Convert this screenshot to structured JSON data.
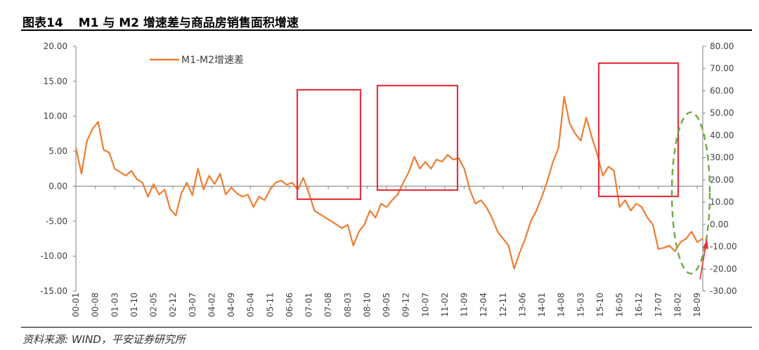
{
  "header": {
    "figure_no": "图表14",
    "title": "M1 与 M2 增速差与商品房销售面积增速"
  },
  "source": "资料来源: WIND，平安证券研究所",
  "colors": {
    "m1_m2": "#ED7D31",
    "sales": "#A6A6A6",
    "highlight_box": "#E8323C",
    "forecast_ellipse": "#70AD47",
    "arrow": "#E8323C",
    "axis": "#7F7F7F"
  },
  "chart_data": {
    "type": "line",
    "x_tick_labels": [
      "00-01",
      "00-08",
      "01-03",
      "01-10",
      "02-05",
      "02-12",
      "03-07",
      "04-02",
      "04-09",
      "05-04",
      "05-11",
      "06-06",
      "07-01",
      "07-08",
      "08-03",
      "08-10",
      "09-05",
      "09-12",
      "10-07",
      "11-02",
      "11-09",
      "12-04",
      "12-11",
      "13-06",
      "14-01",
      "14-08",
      "15-03",
      "15-10",
      "16-05",
      "16-12",
      "17-07",
      "18-02",
      "18-09"
    ],
    "x_range": [
      "2000-01",
      "2018-11"
    ],
    "y_left": {
      "ticks": [
        "20.00",
        "15.00",
        "10.00",
        "5.00",
        "0.00",
        "-5.00",
        "-10.00",
        "-15.00"
      ],
      "range": [
        -15,
        20
      ]
    },
    "y_right": {
      "ticks": [
        "80.00",
        "70.00",
        "60.00",
        "50.00",
        "40.00",
        "30.00",
        "20.00",
        "10.00",
        "0.00",
        "-10.00",
        "-20.00",
        "-30.00"
      ],
      "range": [
        -30,
        80
      ]
    },
    "legend_position": "top",
    "grid": false,
    "series": [
      {
        "name": "M1-M2增速差",
        "axis": "left",
        "points": [
          [
            "2000-01",
            5.5
          ],
          [
            "2000-03",
            1.8
          ],
          [
            "2000-05",
            6.5
          ],
          [
            "2000-07",
            8.2
          ],
          [
            "2000-09",
            9.2
          ],
          [
            "2000-11",
            5.2
          ],
          [
            "2001-01",
            4.8
          ],
          [
            "2001-03",
            2.5
          ],
          [
            "2001-05",
            2.0
          ],
          [
            "2001-07",
            1.5
          ],
          [
            "2001-09",
            2.2
          ],
          [
            "2001-11",
            1.0
          ],
          [
            "2002-01",
            0.5
          ],
          [
            "2002-03",
            -1.5
          ],
          [
            "2002-05",
            0.3
          ],
          [
            "2002-07",
            -1.2
          ],
          [
            "2002-09",
            -0.5
          ],
          [
            "2002-11",
            -3.3
          ],
          [
            "2003-01",
            -4.2
          ],
          [
            "2003-03",
            -1.0
          ],
          [
            "2003-05",
            0.5
          ],
          [
            "2003-07",
            -1.3
          ],
          [
            "2003-09",
            2.5
          ],
          [
            "2003-11",
            -0.5
          ],
          [
            "2004-01",
            1.5
          ],
          [
            "2004-03",
            0.3
          ],
          [
            "2004-05",
            1.8
          ],
          [
            "2004-07",
            -1.2
          ],
          [
            "2004-09",
            -0.2
          ],
          [
            "2004-11",
            -1.0
          ],
          [
            "2005-01",
            -1.5
          ],
          [
            "2005-03",
            -1.2
          ],
          [
            "2005-05",
            -3.0
          ],
          [
            "2005-07",
            -1.5
          ],
          [
            "2005-09",
            -2.0
          ],
          [
            "2005-11",
            -0.5
          ],
          [
            "2006-01",
            0.5
          ],
          [
            "2006-03",
            0.8
          ],
          [
            "2006-05",
            0.2
          ],
          [
            "2006-07",
            0.5
          ],
          [
            "2006-09",
            -0.5
          ],
          [
            "2006-11",
            1.2
          ],
          [
            "2007-01",
            -1.0
          ],
          [
            "2007-03",
            -3.5
          ],
          [
            "2007-05",
            -4.0
          ],
          [
            "2007-07",
            -4.5
          ],
          [
            "2007-09",
            -5.0
          ],
          [
            "2007-11",
            -5.5
          ],
          [
            "2008-01",
            -6.0
          ],
          [
            "2008-03",
            -5.5
          ],
          [
            "2008-05",
            -8.5
          ],
          [
            "2008-07",
            -6.5
          ],
          [
            "2008-09",
            -5.5
          ],
          [
            "2008-11",
            -3.5
          ],
          [
            "2009-01",
            -4.5
          ],
          [
            "2009-03",
            -2.5
          ],
          [
            "2009-05",
            -3.0
          ],
          [
            "2009-07",
            -2.0
          ],
          [
            "2009-09",
            -1.2
          ],
          [
            "2009-11",
            0.5
          ],
          [
            "2010-01",
            2.0
          ],
          [
            "2010-03",
            4.2
          ],
          [
            "2010-05",
            2.5
          ],
          [
            "2010-07",
            3.5
          ],
          [
            "2010-09",
            2.5
          ],
          [
            "2010-11",
            3.8
          ],
          [
            "2011-01",
            3.5
          ],
          [
            "2011-03",
            4.5
          ],
          [
            "2011-05",
            3.8
          ],
          [
            "2011-07",
            4.0
          ],
          [
            "2011-09",
            2.5
          ],
          [
            "2011-11",
            -0.5
          ],
          [
            "2012-01",
            -2.5
          ],
          [
            "2012-03",
            -2.0
          ],
          [
            "2012-05",
            -3.0
          ],
          [
            "2012-07",
            -4.5
          ],
          [
            "2012-09",
            -6.5
          ],
          [
            "2012-11",
            -7.5
          ],
          [
            "2013-01",
            -8.5
          ],
          [
            "2013-03",
            -11.8
          ],
          [
            "2013-05",
            -9.5
          ],
          [
            "2013-07",
            -7.5
          ],
          [
            "2013-09",
            -5.0
          ],
          [
            "2013-11",
            -3.5
          ],
          [
            "2014-01",
            -1.5
          ],
          [
            "2014-03",
            0.8
          ],
          [
            "2014-05",
            3.5
          ],
          [
            "2014-07",
            5.5
          ],
          [
            "2014-09",
            12.8
          ],
          [
            "2014-11",
            9.0
          ],
          [
            "2015-01",
            7.5
          ],
          [
            "2015-03",
            6.5
          ],
          [
            "2015-05",
            9.8
          ],
          [
            "2015-07",
            7.0
          ],
          [
            "2015-09",
            4.5
          ],
          [
            "2015-11",
            1.5
          ],
          [
            "2016-01",
            2.8
          ],
          [
            "2016-03",
            2.2
          ],
          [
            "2016-05",
            -3.0
          ],
          [
            "2016-07",
            -2.0
          ],
          [
            "2016-09",
            -3.5
          ],
          [
            "2016-11",
            -2.5
          ],
          [
            "2017-01",
            -3.0
          ],
          [
            "2017-03",
            -4.5
          ],
          [
            "2017-05",
            -5.5
          ],
          [
            "2017-07",
            -9.0
          ],
          [
            "2017-09",
            -8.8
          ],
          [
            "2017-11",
            -8.5
          ],
          [
            "2018-01",
            -9.3
          ],
          [
            "2018-03",
            -8.0
          ],
          [
            "2018-05",
            -7.5
          ],
          [
            "2018-07",
            -6.5
          ],
          [
            "2018-09",
            -8.0
          ],
          [
            "2018-11",
            -7.5
          ]
        ]
      }
    ]
  }
}
